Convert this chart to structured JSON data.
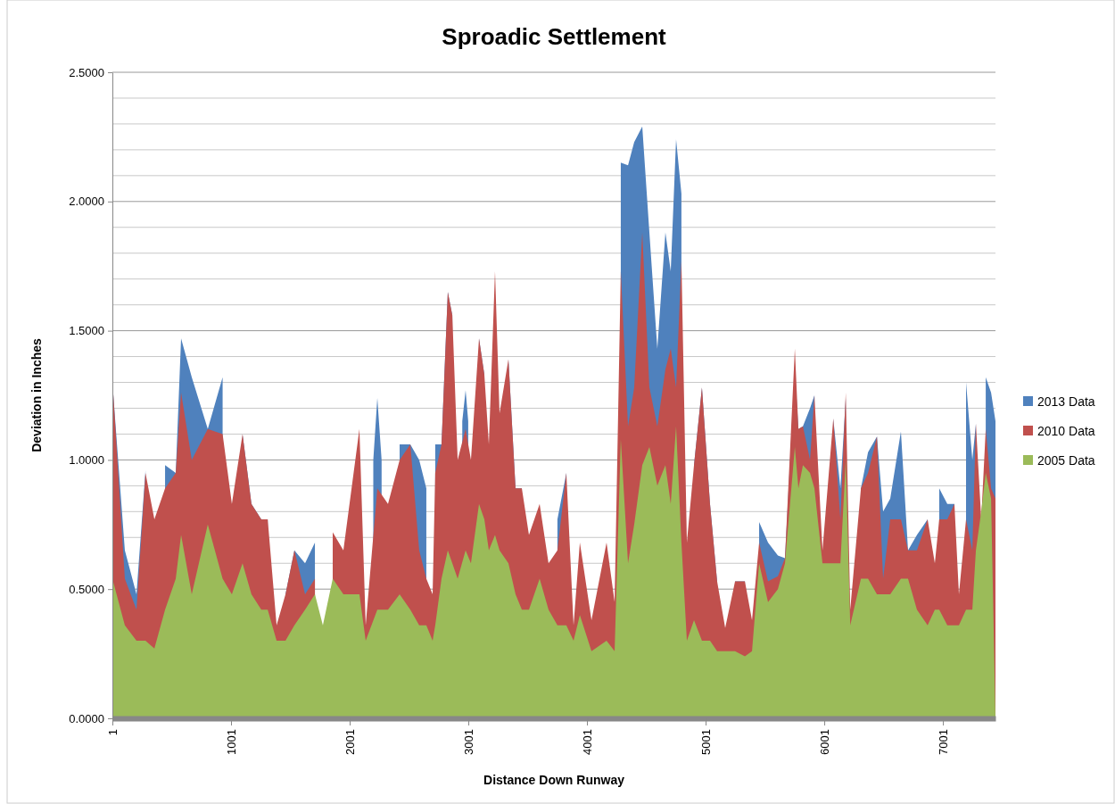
{
  "chart_data": {
    "type": "area",
    "title": "Sproadic Settlement",
    "xlabel": "Distance Down Runway",
    "ylabel": "Deviation in Inches",
    "x": [
      1,
      106,
      204,
      280,
      355,
      445,
      535,
      580,
      670,
      805,
      930,
      1008,
      1098,
      1173,
      1256,
      1310,
      1385,
      1460,
      1535,
      1625,
      1708,
      1775,
      1858,
      1948,
      2083,
      2136,
      2234,
      2324,
      2422,
      2512,
      2587,
      2647,
      2700,
      2722,
      2775,
      2828,
      2866,
      2911,
      2978,
      3023,
      3091,
      3136,
      3174,
      3226,
      3264,
      3339,
      3399,
      3452,
      3512,
      3602,
      3677,
      3752,
      3827,
      3888,
      3941,
      4039,
      4166,
      4234,
      4286,
      4347,
      4399,
      4467,
      4527,
      4594,
      4662,
      4707,
      4752,
      4797,
      4843,
      4903,
      4970,
      5038,
      5098,
      5166,
      5249,
      5332,
      5392,
      5452,
      5527,
      5610,
      5670,
      5753,
      5783,
      5821,
      5881,
      5918,
      5986,
      6077,
      6137,
      6182,
      6220,
      6310,
      6370,
      6445,
      6497,
      6557,
      6647,
      6707,
      6782,
      6872,
      6933,
      6970,
      7038,
      7098,
      7136,
      7196,
      7249,
      7279,
      7324,
      7362,
      7407,
      7444
    ],
    "series": [
      {
        "name": "2013 Data",
        "color": "#4f81bd",
        "x": [
          1,
          106,
          204,
          280,
          355,
          445,
          535,
          580,
          670,
          805,
          930,
          1008,
          1098,
          1173,
          1256,
          1310,
          1385,
          1460,
          1535,
          1625,
          1708,
          1775,
          1858,
          1948,
          2083,
          2136,
          2200,
          2234,
          2270,
          2324,
          2422,
          2512,
          2587,
          2647,
          2700,
          2722,
          2775,
          2828,
          2866,
          2911,
          2950,
          2978,
          3000,
          3023,
          3091,
          3136,
          3174,
          3226,
          3264,
          3339,
          3399,
          3452,
          3512,
          3602,
          3677,
          3752,
          3827,
          3888,
          3941,
          4039,
          4166,
          4234,
          4286,
          4347,
          4399,
          4467,
          4527,
          4594,
          4662,
          4707,
          4752,
          4797,
          4843,
          4903,
          4970,
          5038,
          5098,
          5166,
          5249,
          5332,
          5392,
          5452,
          5527,
          5610,
          5670,
          5753,
          5783,
          5821,
          5881,
          5918,
          5986,
          6077,
          6137,
          6182,
          6220,
          6310,
          6370,
          6445,
          6497,
          6557,
          6647,
          6707,
          6782,
          6872,
          6933,
          6970,
          7038,
          7098,
          7136,
          7196,
          7249,
          7279,
          7324,
          7362,
          7407,
          7444
        ],
        "values": [
          1.3,
          0.65,
          0.48,
          0.96,
          null,
          0.98,
          0.95,
          1.47,
          1.32,
          1.12,
          1.32,
          null,
          1.1,
          0.83,
          0.77,
          0.77,
          null,
          0.48,
          0.65,
          0.6,
          0.68,
          null,
          null,
          null,
          null,
          null,
          1.0,
          1.24,
          1.0,
          null,
          1.06,
          1.06,
          1.0,
          0.89,
          null,
          1.06,
          1.06,
          1.65,
          1.56,
          null,
          1.15,
          1.27,
          1.15,
          null,
          1.47,
          1.33,
          null,
          null,
          null,
          1.39,
          0.89,
          0.89,
          null,
          null,
          null,
          0.77,
          0.95,
          null,
          null,
          null,
          null,
          null,
          2.15,
          2.14,
          2.23,
          2.29,
          1.88,
          1.43,
          1.88,
          1.73,
          2.24,
          2.03,
          null,
          0.98,
          1.28,
          0.83,
          0.53,
          null,
          0.53,
          0.53,
          null,
          0.76,
          0.68,
          0.63,
          0.62,
          1.35,
          1.12,
          1.13,
          1.2,
          1.25,
          null,
          1.16,
          0.89,
          1.24,
          null,
          0.89,
          1.03,
          1.09,
          0.8,
          0.85,
          1.11,
          0.65,
          0.71,
          0.77,
          null,
          0.89,
          0.83,
          0.83,
          null,
          1.3,
          1.0,
          1.14,
          null,
          1.32,
          1.26,
          1.15
        ]
      },
      {
        "name": "2010 Data",
        "color": "#c0504d",
        "values": [
          1.31,
          0.54,
          0.42,
          0.95,
          0.77,
          0.89,
          0.95,
          1.26,
          1.0,
          1.12,
          1.1,
          0.83,
          1.1,
          0.83,
          0.77,
          0.77,
          0.36,
          0.48,
          0.65,
          0.48,
          0.54,
          null,
          0.72,
          0.65,
          1.12,
          0.36,
          0.89,
          0.83,
          1.0,
          1.06,
          0.65,
          0.54,
          0.48,
          0.95,
          1.06,
          1.65,
          1.56,
          1.0,
          1.12,
          1.0,
          1.47,
          1.33,
          1.06,
          1.73,
          1.18,
          1.39,
          0.89,
          0.89,
          0.71,
          0.83,
          0.6,
          0.65,
          0.95,
          0.36,
          0.68,
          0.38,
          0.68,
          0.45,
          1.73,
          1.13,
          1.28,
          1.88,
          1.28,
          1.13,
          1.35,
          1.43,
          1.28,
          1.77,
          0.68,
          0.98,
          1.28,
          0.83,
          0.53,
          0.35,
          0.53,
          0.53,
          0.38,
          0.68,
          0.53,
          0.55,
          0.62,
          1.43,
          1.12,
          1.13,
          1.0,
          1.25,
          0.65,
          1.16,
          0.77,
          1.26,
          0.42,
          0.89,
          0.95,
          1.09,
          0.54,
          0.77,
          0.77,
          0.65,
          0.65,
          0.77,
          0.6,
          0.77,
          0.77,
          0.83,
          0.48,
          0.77,
          0.65,
          1.14,
          0.77,
          1.12,
          0.89,
          0.85
        ]
      },
      {
        "name": "2005 Data",
        "color": "#9bbb59",
        "values": [
          0.54,
          0.36,
          0.3,
          0.3,
          0.27,
          0.42,
          0.54,
          0.71,
          0.48,
          0.75,
          0.54,
          0.48,
          0.6,
          0.48,
          0.42,
          0.42,
          0.3,
          0.3,
          0.36,
          0.42,
          0.48,
          0.36,
          0.54,
          0.48,
          0.48,
          0.3,
          0.42,
          0.42,
          0.48,
          0.42,
          0.36,
          0.36,
          0.3,
          0.36,
          0.54,
          0.65,
          0.6,
          0.54,
          0.65,
          0.6,
          0.83,
          0.77,
          0.65,
          0.71,
          0.65,
          0.6,
          0.48,
          0.42,
          0.42,
          0.54,
          0.42,
          0.36,
          0.36,
          0.3,
          0.4,
          0.26,
          0.3,
          0.26,
          1.08,
          0.6,
          0.75,
          0.98,
          1.05,
          0.9,
          0.98,
          0.83,
          1.13,
          0.68,
          0.3,
          0.38,
          0.3,
          0.3,
          0.26,
          0.26,
          0.26,
          0.24,
          0.26,
          0.6,
          0.45,
          0.5,
          0.6,
          1.05,
          0.89,
          0.98,
          0.95,
          0.89,
          0.6,
          0.6,
          0.6,
          1.0,
          0.36,
          0.54,
          0.54,
          0.48,
          0.48,
          0.48,
          0.54,
          0.54,
          0.42,
          0.36,
          0.42,
          0.42,
          0.36,
          0.36,
          0.36,
          0.42,
          0.42,
          0.65,
          0.8,
          0.95,
          0.85,
          0
        ]
      }
    ],
    "xlim": [
      1,
      7444
    ],
    "xticks": [
      1,
      1001,
      2001,
      3001,
      4001,
      5001,
      6001,
      7001
    ],
    "ylim": [
      0,
      2.5
    ],
    "yticks": [
      {
        "value": 0,
        "label": "0.0000"
      },
      {
        "value": 0.5,
        "label": "0.5000"
      },
      {
        "value": 0.6,
        "label": null
      },
      {
        "value": 0.7,
        "label": null
      },
      {
        "value": 0.8,
        "label": null
      },
      {
        "value": 0.9,
        "label": null
      },
      {
        "value": 1,
        "label": "1.0000"
      },
      {
        "value": 1.1,
        "label": null
      },
      {
        "value": 1.2,
        "label": null
      },
      {
        "value": 1.3,
        "label": null
      },
      {
        "value": 1.4,
        "label": null
      },
      {
        "value": 1.5,
        "label": "1.5000"
      },
      {
        "value": 1.6,
        "label": null
      },
      {
        "value": 1.7,
        "label": null
      },
      {
        "value": 1.8,
        "label": null
      },
      {
        "value": 1.9,
        "label": null
      },
      {
        "value": 2,
        "label": "2.0000"
      },
      {
        "value": 2.1,
        "label": null
      },
      {
        "value": 2.2,
        "label": null
      },
      {
        "value": 2.3,
        "label": null
      },
      {
        "value": 2.4,
        "label": null
      },
      {
        "value": 2.5,
        "label": "2.5000"
      }
    ],
    "grid": "y",
    "legend": "right"
  }
}
